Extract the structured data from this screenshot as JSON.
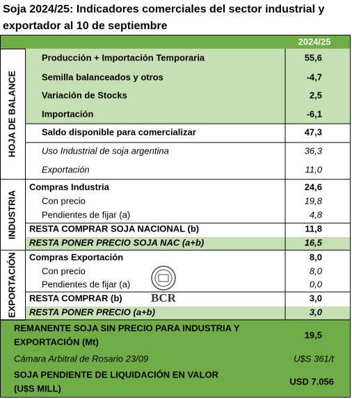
{
  "title_lines": [
    "Soja 2024/25: Indicadores comerciales del sector industrial y",
    "exportador al 10 de septiembre"
  ],
  "header": {
    "column": "2024/25"
  },
  "sections": [
    {
      "label": "HOJA DE BALANCE",
      "rows": [
        {
          "label": "Producción + Importación Temporaria",
          "value": "55,6"
        },
        {
          "label": "Semilla balanceados y otros",
          "value": "-4,7"
        },
        {
          "label": "Variación de Stocks",
          "value": "2,5"
        },
        {
          "label": "Importación",
          "value": "-6,1"
        },
        {
          "label": "Saldo disponible para comercializar",
          "value": "47,3"
        },
        {
          "label": "Uso Industrial de soja argentina",
          "value": "36,3"
        },
        {
          "label": "Exportación",
          "value": "11,0"
        }
      ]
    },
    {
      "label": "INDUSTRIA",
      "rows": [
        {
          "label": "Compras Industria",
          "value": "24,6"
        },
        {
          "label": "Con precio",
          "value": "19,8"
        },
        {
          "label": "Pendientes de fijar (a)",
          "value": "4,8"
        },
        {
          "label": "RESTA COMPRAR SOJA NACIONAL (b)",
          "value": "11,8"
        },
        {
          "label": "RESTA PONER PRECIO SOJA NAC (a+b)",
          "value": "16,5"
        }
      ]
    },
    {
      "label": "EXPORTACIÓN",
      "rows": [
        {
          "label": "Compras Exportación",
          "value": "8,0"
        },
        {
          "label": "Con precio",
          "value": "8,0"
        },
        {
          "label": "Pendientes de fijar (a)",
          "value": "0,0"
        },
        {
          "label": "RESTA COMPRAR (b)",
          "value": "3,0"
        },
        {
          "label": "RESTA PONER PRECIO (a+b)",
          "value": "3,0"
        }
      ]
    }
  ],
  "logo": "BCR",
  "footer": [
    {
      "label_lines": [
        "REMANENTE SOJA SIN PRECIO PARA INDUSTRIA Y",
        "EXPORTACIÓN (Mt)"
      ],
      "value": "19,5"
    },
    {
      "label_lines": [
        "Cámara Arbitral de Rosario 23/09"
      ],
      "value": "U$S 361/t"
    },
    {
      "label_lines": [
        "SOJA PENDIENTE DE LIQUIDACIÓN EN VALOR",
        "(U$S MILL)"
      ],
      "value": "USD 7.056"
    }
  ]
}
